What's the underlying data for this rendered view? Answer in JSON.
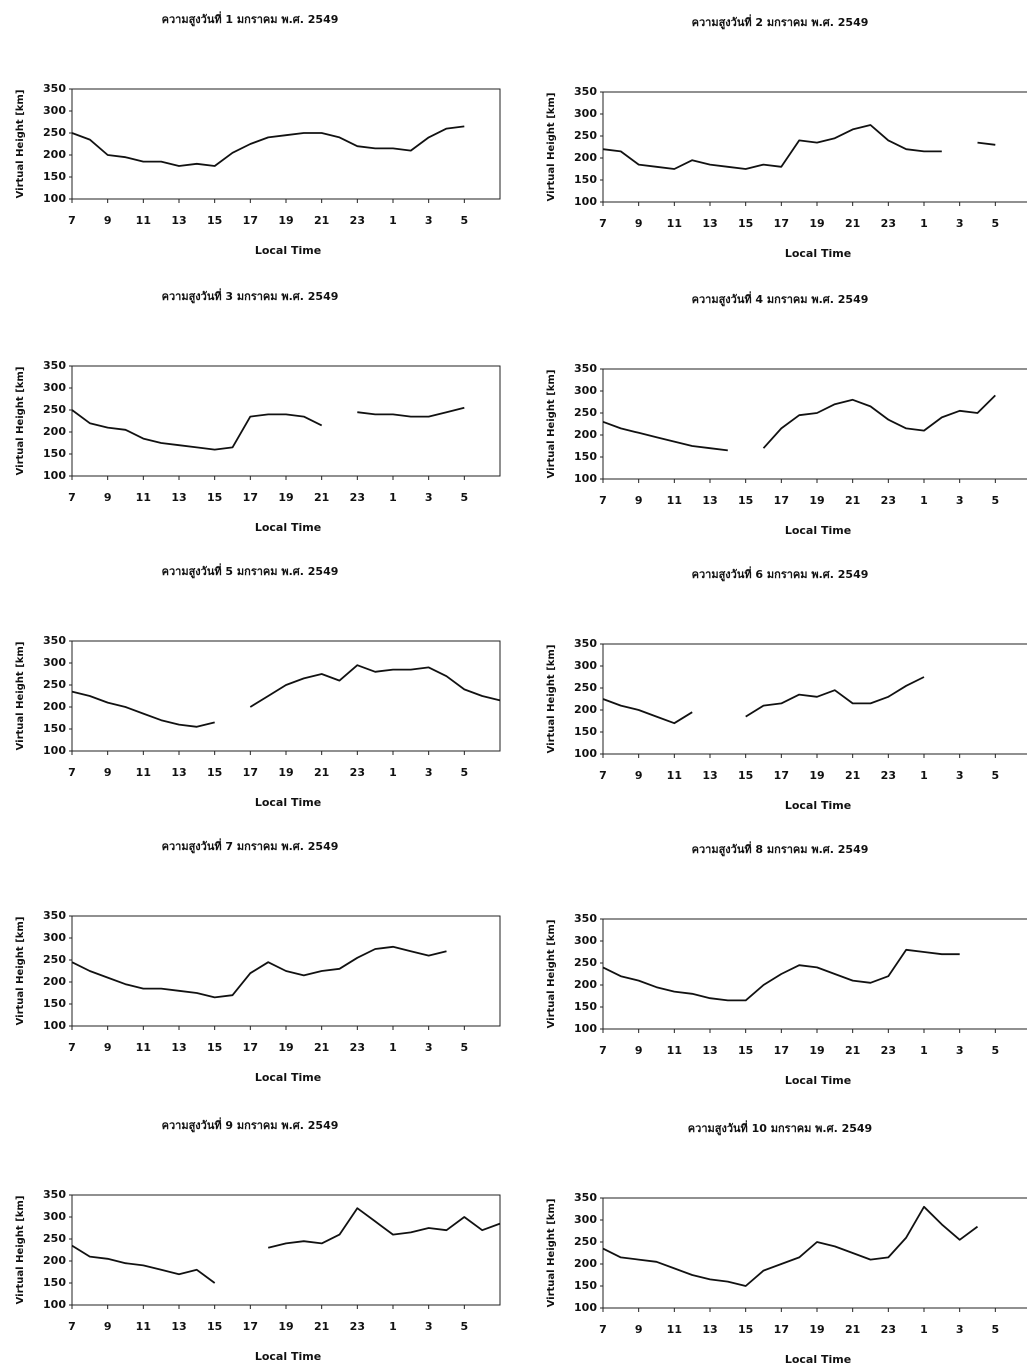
{
  "chart_data": [
    {
      "type": "line",
      "title": "ความสูงวันที่ 1 มกราคม พ.ศ. 2549",
      "x_label": "Local Time",
      "y_label": "Virtual Height [km]",
      "color": "#111111",
      "x": [
        7,
        8,
        9,
        10,
        11,
        12,
        13,
        14,
        15,
        16,
        17,
        18,
        19,
        20,
        21,
        22,
        23,
        24,
        25,
        26,
        27,
        28,
        29,
        30,
        31
      ],
      "values": [
        250,
        235,
        200,
        195,
        185,
        185,
        175,
        180,
        175,
        205,
        225,
        240,
        245,
        250,
        250,
        240,
        220,
        215,
        215,
        210,
        240,
        260,
        265,
        null,
        null
      ],
      "xlim": [
        7,
        31
      ],
      "ylim": [
        100,
        350
      ],
      "xticks": [
        7,
        9,
        11,
        13,
        15,
        17,
        19,
        21,
        23,
        {
          "value": 25,
          "label": "1"
        },
        {
          "value": 27,
          "label": "3"
        },
        {
          "value": 29,
          "label": "5"
        }
      ],
      "yticks": [
        100,
        150,
        200,
        250,
        300,
        350
      ]
    },
    {
      "type": "line",
      "title": "ความสูงวันที่ 2 มกราคม พ.ศ. 2549",
      "x_label": "Local Time",
      "y_label": "Virtual Height [km]",
      "color": "#111111",
      "x": [
        7,
        8,
        9,
        10,
        11,
        12,
        13,
        14,
        15,
        16,
        17,
        18,
        19,
        20,
        21,
        22,
        23,
        24,
        25,
        26,
        27,
        28,
        29,
        30,
        31
      ],
      "values": [
        220,
        215,
        185,
        180,
        175,
        195,
        185,
        180,
        175,
        185,
        180,
        240,
        235,
        245,
        265,
        275,
        240,
        220,
        215,
        215,
        null,
        235,
        230,
        null,
        null
      ],
      "xlim": [
        7,
        31
      ],
      "ylim": [
        100,
        350
      ],
      "xticks": [
        7,
        9,
        11,
        13,
        15,
        17,
        19,
        21,
        23,
        {
          "value": 25,
          "label": "1"
        },
        {
          "value": 27,
          "label": "3"
        },
        {
          "value": 29,
          "label": "5"
        }
      ],
      "yticks": [
        100,
        150,
        200,
        250,
        300,
        350
      ]
    },
    {
      "type": "line",
      "title": "ความสูงวันที่ 3 มกราคม พ.ศ. 2549",
      "x_label": "Local Time",
      "y_label": "Virtual Height [km]",
      "color": "#111111",
      "x": [
        7,
        8,
        9,
        10,
        11,
        12,
        13,
        14,
        15,
        16,
        17,
        18,
        19,
        20,
        21,
        22,
        23,
        24,
        25,
        26,
        27,
        28,
        29,
        30,
        31
      ],
      "values": [
        250,
        220,
        210,
        205,
        185,
        175,
        170,
        165,
        160,
        165,
        235,
        240,
        240,
        235,
        215,
        null,
        245,
        240,
        240,
        235,
        235,
        245,
        255,
        null,
        null
      ],
      "xlim": [
        7,
        31
      ],
      "ylim": [
        100,
        350
      ],
      "xticks": [
        7,
        9,
        11,
        13,
        15,
        17,
        19,
        21,
        23,
        {
          "value": 25,
          "label": "1"
        },
        {
          "value": 27,
          "label": "3"
        },
        {
          "value": 29,
          "label": "5"
        }
      ],
      "yticks": [
        100,
        150,
        200,
        250,
        300,
        350
      ]
    },
    {
      "type": "line",
      "title": "ความสูงวันที่ 4 มกราคม พ.ศ. 2549",
      "x_label": "Local Time",
      "y_label": "Virtual Height [km]",
      "color": "#111111",
      "x": [
        7,
        8,
        9,
        10,
        11,
        12,
        13,
        14,
        15,
        16,
        17,
        18,
        19,
        20,
        21,
        22,
        23,
        24,
        25,
        26,
        27,
        28,
        29,
        30,
        31
      ],
      "values": [
        230,
        215,
        205,
        195,
        185,
        175,
        170,
        165,
        null,
        170,
        215,
        245,
        250,
        270,
        280,
        265,
        235,
        215,
        210,
        240,
        255,
        250,
        290,
        null,
        null
      ],
      "xlim": [
        7,
        31
      ],
      "ylim": [
        100,
        350
      ],
      "xticks": [
        7,
        9,
        11,
        13,
        15,
        17,
        19,
        21,
        23,
        {
          "value": 25,
          "label": "1"
        },
        {
          "value": 27,
          "label": "3"
        },
        {
          "value": 29,
          "label": "5"
        }
      ],
      "yticks": [
        100,
        150,
        200,
        250,
        300,
        350
      ]
    },
    {
      "type": "line",
      "title": "ความสูงวันที่ 5 มกราคม พ.ศ. 2549",
      "x_label": "Local Time",
      "y_label": "Virtual Height [km]",
      "color": "#111111",
      "x": [
        7,
        8,
        9,
        10,
        11,
        12,
        13,
        14,
        15,
        16,
        17,
        18,
        19,
        20,
        21,
        22,
        23,
        24,
        25,
        26,
        27,
        28,
        29,
        30,
        31
      ],
      "values": [
        235,
        225,
        210,
        200,
        185,
        170,
        160,
        155,
        165,
        null,
        200,
        225,
        250,
        265,
        275,
        260,
        295,
        280,
        285,
        285,
        290,
        270,
        240,
        225,
        215
      ],
      "xlim": [
        7,
        31
      ],
      "ylim": [
        100,
        350
      ],
      "xticks": [
        7,
        9,
        11,
        13,
        15,
        17,
        19,
        21,
        23,
        {
          "value": 25,
          "label": "1"
        },
        {
          "value": 27,
          "label": "3"
        },
        {
          "value": 29,
          "label": "5"
        }
      ],
      "yticks": [
        100,
        150,
        200,
        250,
        300,
        350
      ]
    },
    {
      "type": "line",
      "title": "ความสูงวันที่ 6 มกราคม พ.ศ. 2549",
      "x_label": "Local Time",
      "y_label": "Virtual Height [km]",
      "color": "#111111",
      "x": [
        7,
        8,
        9,
        10,
        11,
        12,
        13,
        14,
        15,
        16,
        17,
        18,
        19,
        20,
        21,
        22,
        23,
        24,
        25,
        26,
        27,
        28,
        29,
        30,
        31
      ],
      "values": [
        225,
        210,
        200,
        185,
        170,
        195,
        null,
        null,
        185,
        210,
        215,
        235,
        230,
        245,
        215,
        215,
        230,
        255,
        275,
        null,
        null,
        null,
        null,
        null,
        null
      ],
      "xlim": [
        7,
        31
      ],
      "ylim": [
        100,
        350
      ],
      "xticks": [
        7,
        9,
        11,
        13,
        15,
        17,
        19,
        21,
        23,
        {
          "value": 25,
          "label": "1"
        },
        {
          "value": 27,
          "label": "3"
        },
        {
          "value": 29,
          "label": "5"
        }
      ],
      "yticks": [
        100,
        150,
        200,
        250,
        300,
        350
      ]
    },
    {
      "type": "line",
      "title": "ความสูงวันที่ 7 มกราคม พ.ศ. 2549",
      "x_label": "Local Time",
      "y_label": "Virtual Height [km]",
      "color": "#111111",
      "x": [
        7,
        8,
        9,
        10,
        11,
        12,
        13,
        14,
        15,
        16,
        17,
        18,
        19,
        20,
        21,
        22,
        23,
        24,
        25,
        26,
        27,
        28,
        29,
        30,
        31
      ],
      "values": [
        245,
        225,
        210,
        195,
        185,
        185,
        180,
        175,
        165,
        170,
        220,
        245,
        225,
        215,
        225,
        230,
        255,
        275,
        280,
        270,
        260,
        270,
        null,
        null,
        null
      ],
      "xlim": [
        7,
        31
      ],
      "ylim": [
        100,
        350
      ],
      "xticks": [
        7,
        9,
        11,
        13,
        15,
        17,
        19,
        21,
        23,
        {
          "value": 25,
          "label": "1"
        },
        {
          "value": 27,
          "label": "3"
        },
        {
          "value": 29,
          "label": "5"
        }
      ],
      "yticks": [
        100,
        150,
        200,
        250,
        300,
        350
      ]
    },
    {
      "type": "line",
      "title": "ความสูงวันที่ 8 มกราคม พ.ศ. 2549",
      "x_label": "Local Time",
      "y_label": "Virtual Height [km]",
      "color": "#111111",
      "x": [
        7,
        8,
        9,
        10,
        11,
        12,
        13,
        14,
        15,
        16,
        17,
        18,
        19,
        20,
        21,
        22,
        23,
        24,
        25,
        26,
        27,
        28,
        29,
        30,
        31
      ],
      "values": [
        240,
        220,
        210,
        195,
        185,
        180,
        170,
        165,
        165,
        200,
        225,
        245,
        240,
        225,
        210,
        205,
        220,
        280,
        275,
        270,
        270,
        null,
        null,
        null,
        null
      ],
      "xlim": [
        7,
        31
      ],
      "ylim": [
        100,
        350
      ],
      "xticks": [
        7,
        9,
        11,
        13,
        15,
        17,
        19,
        21,
        23,
        {
          "value": 25,
          "label": "1"
        },
        {
          "value": 27,
          "label": "3"
        },
        {
          "value": 29,
          "label": "5"
        }
      ],
      "yticks": [
        100,
        150,
        200,
        250,
        300,
        350
      ]
    },
    {
      "type": "line",
      "title": "ความสูงวันที่ 9 มกราคม พ.ศ. 2549",
      "x_label": "Local Time",
      "y_label": "Virtual Height [km]",
      "color": "#111111",
      "x": [
        7,
        8,
        9,
        10,
        11,
        12,
        13,
        14,
        15,
        16,
        17,
        18,
        19,
        20,
        21,
        22,
        23,
        24,
        25,
        26,
        27,
        28,
        29,
        30,
        31
      ],
      "values": [
        235,
        210,
        205,
        195,
        190,
        180,
        170,
        180,
        150,
        null,
        null,
        230,
        240,
        245,
        240,
        260,
        320,
        290,
        260,
        265,
        275,
        270,
        300,
        270,
        285
      ],
      "xlim": [
        7,
        31
      ],
      "ylim": [
        100,
        350
      ],
      "xticks": [
        7,
        9,
        11,
        13,
        15,
        17,
        19,
        21,
        23,
        {
          "value": 25,
          "label": "1"
        },
        {
          "value": 27,
          "label": "3"
        },
        {
          "value": 29,
          "label": "5"
        }
      ],
      "yticks": [
        100,
        150,
        200,
        250,
        300,
        350
      ]
    },
    {
      "type": "line",
      "title": "ความสูงวันที่ 10 มกราคม พ.ศ. 2549",
      "x_label": "Local Time",
      "y_label": "Virtual Height [km]",
      "color": "#111111",
      "x": [
        7,
        8,
        9,
        10,
        11,
        12,
        13,
        14,
        15,
        16,
        17,
        18,
        19,
        20,
        21,
        22,
        23,
        24,
        25,
        26,
        27,
        28,
        29,
        30,
        31
      ],
      "values": [
        235,
        215,
        210,
        205,
        190,
        175,
        165,
        160,
        150,
        185,
        200,
        215,
        250,
        240,
        225,
        210,
        215,
        260,
        330,
        290,
        255,
        285,
        null,
        null,
        null
      ],
      "xlim": [
        7,
        31
      ],
      "ylim": [
        100,
        350
      ],
      "xticks": [
        7,
        9,
        11,
        13,
        15,
        17,
        19,
        21,
        23,
        {
          "value": 25,
          "label": "1"
        },
        {
          "value": 27,
          "label": "3"
        },
        {
          "value": 29,
          "label": "5"
        }
      ],
      "yticks": [
        100,
        150,
        200,
        250,
        300,
        350
      ]
    }
  ]
}
